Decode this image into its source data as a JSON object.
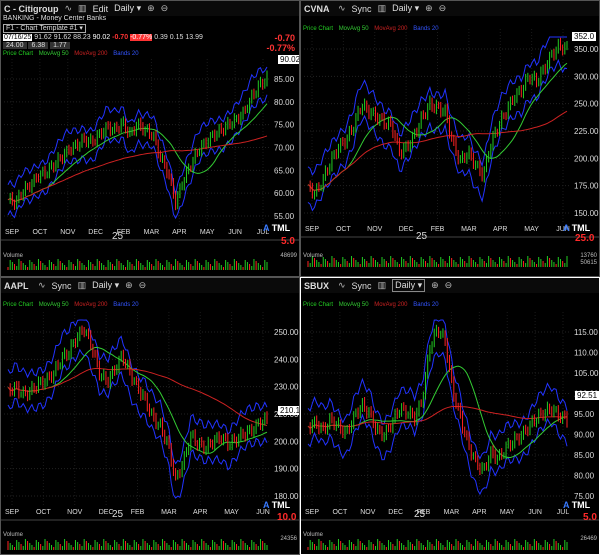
{
  "colors": {
    "up": "#22cc22",
    "down": "#ff2222",
    "ma50": "#33cc33",
    "ma200": "#cc2222",
    "band": "#2233ff",
    "price_tag_bg": "#ffffff"
  },
  "panes": [
    {
      "symbol": "C - Citigroup",
      "toolbar": {
        "sync": "",
        "interval": "",
        "edit": "Edit",
        "daily": "Daily"
      },
      "industry": "BANKING - Money Center Banks",
      "template": "F1 - Chart Template #1",
      "quote": {
        "date": "07/16/25",
        "open": "91.62",
        "high": "91.62",
        "low": "88.23",
        "close": "90.02",
        "chg": "-0.70",
        "pct": "-0.77%",
        "v1": "0.39",
        "v2": "0.15",
        "v3": "13.99",
        "r2a": "24.00",
        "r2b": "6.38",
        "r2c": "1.77"
      },
      "topright_chg": "-0.70",
      "topright_pct": "-0.77%",
      "legend": {
        "price": "Price Chart",
        "ma50": "MovAvg 50",
        "ma200": "MovAvg 200",
        "bands": "Bands 20"
      },
      "price_tag": "90.02",
      "y_labels": [
        "85.00",
        "80.00",
        "75.00",
        "70.00",
        "65.00",
        "60.00",
        "55.00"
      ],
      "x_labels": [
        "SEP",
        "OCT",
        "NOV",
        "DEC",
        "FEB",
        "MAR",
        "APR",
        "MAY",
        "JUN",
        "JUL"
      ],
      "year": "25",
      "atml": "TML",
      "atml_a": "A",
      "corner_num": "5.0",
      "volume_label": "Volume",
      "volume_readout": [
        "48699",
        ""
      ]
    },
    {
      "symbol": "CVNA",
      "toolbar": {
        "sync": "Sync",
        "interval": "",
        "edit": "",
        "daily": "Daily"
      },
      "legend": {
        "price": "Price Chart",
        "ma50": "MovAvg 50",
        "ma200": "MovAvg 200",
        "bands": "Bands 20"
      },
      "price_tag": "352.0",
      "y_labels": [
        "350.00",
        "300.00",
        "250.00",
        "225.00",
        "200.00",
        "175.00",
        "150.00"
      ],
      "x_labels": [
        "SEP",
        "OCT",
        "NOV",
        "DEC",
        "FEB",
        "MAR",
        "APR",
        "MAY",
        "JUN"
      ],
      "year": "25",
      "atml": "TML",
      "atml_a": "A",
      "corner_num": "25.0",
      "volume_label": "Volume",
      "volume_readout": [
        "13760",
        "50615"
      ]
    },
    {
      "symbol": "AAPL",
      "toolbar": {
        "sync": "Sync",
        "interval": "",
        "edit": "",
        "daily": "Daily"
      },
      "legend": {
        "price": "Price Chart",
        "ma50": "MovAvg 50",
        "ma200": "MovAvg 200",
        "bands": "Bands 20"
      },
      "price_tag": "210.1",
      "y_labels": [
        "250.00",
        "240.00",
        "230.00",
        "220.00",
        "200.00",
        "190.00",
        "180.00"
      ],
      "x_labels": [
        "SEP",
        "OCT",
        "NOV",
        "DEC",
        "FEB",
        "MAR",
        "APR",
        "MAY",
        "JUN"
      ],
      "year": "25",
      "atml": "TML",
      "atml_a": "A",
      "corner_num": "10.0",
      "volume_label": "Volume",
      "volume_readout": [
        "24356",
        ""
      ]
    },
    {
      "symbol": "SBUX",
      "toolbar": {
        "sync": "Sync",
        "interval": "",
        "edit": "",
        "daily": "Daily"
      },
      "legend": {
        "price": "Price Chart",
        "ma50": "MovAvg 50",
        "ma200": "MovAvg 200",
        "bands": "Bands 20"
      },
      "price_tag": "92.51",
      "y_labels": [
        "115.00",
        "110.00",
        "105.00",
        "100.00",
        "95.00",
        "90.00",
        "85.00",
        "80.00",
        "75.00"
      ],
      "x_labels": [
        "SEP",
        "OCT",
        "NOV",
        "DEC",
        "FEB",
        "MAR",
        "APR",
        "MAY",
        "JUN",
        "JUL"
      ],
      "year": "25",
      "atml": "TML",
      "atml_a": "A",
      "corner_num": "5.0",
      "volume_label": "Volume",
      "volume_readout": [
        "26469",
        ""
      ]
    }
  ]
}
